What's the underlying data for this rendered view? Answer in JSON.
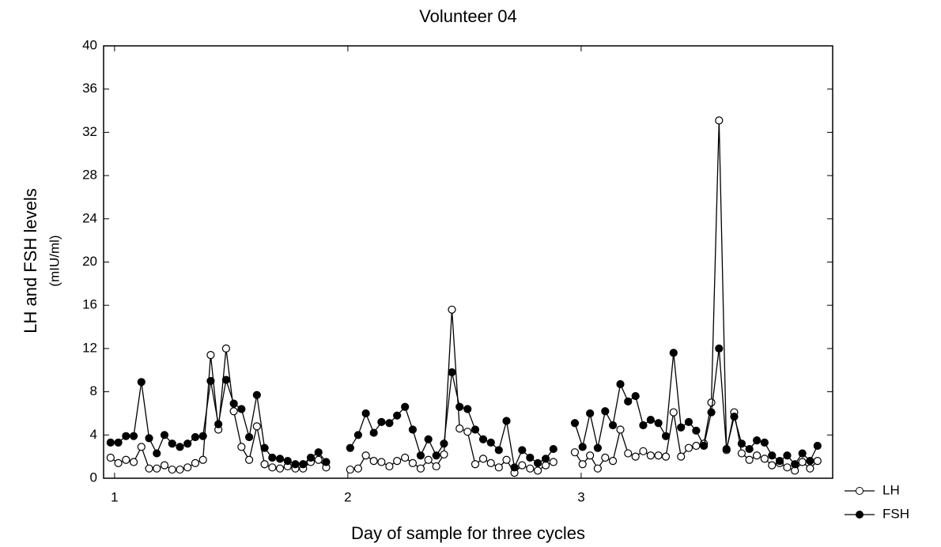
{
  "chart_data": {
    "type": "line",
    "title": "Volunteer 04",
    "xlabel": "Day of sample for three cycles",
    "ylabel": [
      "LH and FSH levels",
      "(mIU/ml)"
    ],
    "x": [
      0.983,
      1.016,
      1.049,
      1.082,
      1.115,
      1.148,
      1.181,
      1.214,
      1.247,
      1.28,
      1.313,
      1.346,
      1.379,
      1.412,
      1.445,
      1.478,
      1.511,
      1.544,
      1.577,
      1.61,
      1.643,
      1.676,
      1.709,
      1.742,
      1.775,
      1.808,
      1.841,
      1.874,
      1.907,
      1.96,
      2.01,
      2.044,
      2.077,
      2.111,
      2.144,
      2.178,
      2.211,
      2.245,
      2.278,
      2.312,
      2.345,
      2.379,
      2.412,
      2.446,
      2.479,
      2.513,
      2.546,
      2.58,
      2.613,
      2.647,
      2.68,
      2.714,
      2.747,
      2.781,
      2.814,
      2.848,
      2.881,
      2.93,
      2.973,
      3.006,
      3.038,
      3.071,
      3.103,
      3.136,
      3.168,
      3.201,
      3.233,
      3.266,
      3.298,
      3.331,
      3.363,
      3.396,
      3.428,
      3.461,
      3.493,
      3.526,
      3.558,
      3.591,
      3.623,
      3.656,
      3.688,
      3.721,
      3.753,
      3.786,
      3.818,
      3.851,
      3.883,
      3.916,
      3.948,
      3.981,
      4.013
    ],
    "series": [
      {
        "name": "LH",
        "color": "#000000",
        "marker": "open",
        "values": [
          1.9,
          1.4,
          1.7,
          1.5,
          2.9,
          0.9,
          0.9,
          1.2,
          0.8,
          0.8,
          1.0,
          1.4,
          1.7,
          11.4,
          4.5,
          12.0,
          6.2,
          2.9,
          1.7,
          4.8,
          1.3,
          1.0,
          0.9,
          1.1,
          0.9,
          0.9,
          1.5,
          1.7,
          1.0,
          null,
          0.8,
          0.9,
          2.1,
          1.6,
          1.5,
          1.1,
          1.6,
          1.9,
          1.4,
          0.9,
          1.7,
          1.1,
          2.2,
          15.6,
          4.6,
          4.3,
          1.3,
          1.8,
          1.4,
          1.0,
          1.7,
          0.5,
          1.2,
          0.9,
          0.7,
          1.2,
          1.5,
          null,
          2.4,
          1.3,
          2.1,
          0.9,
          1.9,
          1.6,
          4.5,
          2.3,
          2.0,
          2.5,
          2.1,
          2.1,
          2.0,
          6.1,
          2.0,
          2.8,
          3.0,
          3.2,
          7.0,
          33.1,
          2.6,
          6.1,
          2.3,
          1.7,
          2.1,
          1.8,
          1.2,
          1.4,
          1.0,
          0.7,
          1.5,
          0.9,
          1.6
        ]
      },
      {
        "name": "FSH",
        "color": "#000000",
        "marker": "filled",
        "values": [
          3.3,
          3.3,
          3.9,
          3.9,
          8.9,
          3.7,
          2.3,
          4.0,
          3.2,
          2.9,
          3.2,
          3.8,
          3.9,
          9.0,
          5.0,
          9.1,
          6.9,
          6.4,
          3.8,
          7.7,
          2.8,
          1.9,
          1.8,
          1.6,
          1.3,
          1.3,
          1.9,
          2.4,
          1.5,
          null,
          2.8,
          4.0,
          6.0,
          4.2,
          5.2,
          5.1,
          5.8,
          6.6,
          4.5,
          2.1,
          3.6,
          2.1,
          3.2,
          9.8,
          6.6,
          6.4,
          4.5,
          3.6,
          3.3,
          2.6,
          5.3,
          1.0,
          2.6,
          1.9,
          1.4,
          1.8,
          2.7,
          null,
          5.1,
          2.9,
          6.0,
          2.8,
          6.2,
          4.9,
          8.7,
          7.1,
          7.6,
          4.9,
          5.4,
          5.1,
          3.9,
          11.6,
          4.7,
          5.2,
          4.4,
          3.0,
          6.1,
          12.0,
          2.7,
          5.7,
          3.2,
          2.7,
          3.5,
          3.3,
          2.1,
          1.6,
          2.1,
          1.3,
          2.3,
          1.6,
          3.0
        ]
      }
    ],
    "xlim": [
      0.953,
      4.078
    ],
    "xticks": [
      1,
      2,
      3
    ],
    "ylim": [
      0,
      40
    ],
    "yticks": [
      0,
      4,
      8,
      12,
      16,
      20,
      24,
      28,
      32,
      36,
      40
    ],
    "legend": "right"
  }
}
